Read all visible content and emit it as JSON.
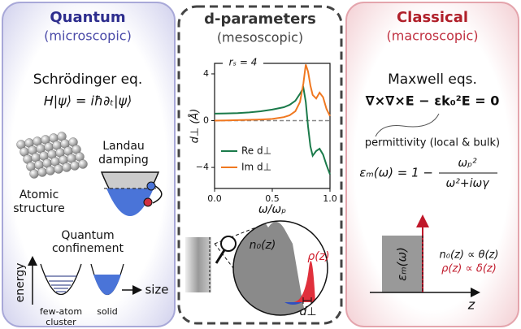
{
  "left": {
    "title": "Quantum",
    "subtitle": "(microscopic)",
    "equation_name": "Schrödinger eq.",
    "equation": "H|ψ⟩ = iħ∂ₜ|ψ⟩",
    "atomic_label": [
      "Atomic",
      "structure"
    ],
    "landau_label": [
      "Landau",
      "damping"
    ],
    "confinement_label": [
      "Quantum",
      "confinement"
    ],
    "energy_label": "energy",
    "size_label": "size",
    "cluster_label": [
      "few-atom",
      "cluster"
    ],
    "solid_label": "solid"
  },
  "center": {
    "title": "d-parameters",
    "subtitle": "(mesoscopic)",
    "n0_label": "n₀(z)",
    "rho_label": "ρ(z)",
    "d_label": "d⊥"
  },
  "right": {
    "title": "Classical",
    "subtitle": "(macroscopic)",
    "equation_name": "Maxwell eqs.",
    "equation": "∇×∇×E − εk₀²E = 0",
    "permittivity_label": "permittivity (local & bulk)",
    "formula_lhs": "εₘ(ω) = 1 −",
    "formula_num": "ωₚ²",
    "formula_den": "ω²+iωγ",
    "eps_label": "εₘ(ω)",
    "n0_label": "n₀(z) ∝ θ(z)",
    "rho_label": "ρ(z) ∝ δ(z)",
    "z_label": "z"
  },
  "chart_data": {
    "type": "line",
    "annotation": "rₛ = 4",
    "ylabel": "d⊥ (Å)",
    "xlabel": "ω/ωₚ",
    "x": [
      0,
      0.1,
      0.2,
      0.3,
      0.4,
      0.5,
      0.6,
      0.65,
      0.7,
      0.74,
      0.77,
      0.79,
      0.81,
      0.83,
      0.85,
      0.88,
      0.91,
      0.94,
      0.97,
      1.0
    ],
    "series": [
      {
        "name": "Re d⊥",
        "color": "#1a7a4a",
        "values": [
          0.6,
          0.62,
          0.65,
          0.7,
          0.8,
          0.95,
          1.15,
          1.35,
          1.7,
          2.3,
          2.8,
          1.6,
          -0.5,
          -2.2,
          -3.0,
          -2.6,
          -2.4,
          -2.9,
          -3.8,
          -4.6
        ]
      },
      {
        "name": "Im d⊥",
        "color": "#f07820",
        "values": [
          0.0,
          0.02,
          0.04,
          0.07,
          0.1,
          0.15,
          0.3,
          0.45,
          0.8,
          1.6,
          3.2,
          4.8,
          4.2,
          3.0,
          2.2,
          1.9,
          2.4,
          2.0,
          1.0,
          0.4
        ]
      }
    ],
    "xlim": [
      0,
      1
    ],
    "ylim": [
      -5.8,
      4.9
    ],
    "xticks": [
      {
        "value": 0,
        "label": "0.0"
      },
      0.5,
      {
        "value": 1,
        "label": "1.0"
      }
    ],
    "yticks": [
      4,
      0,
      {
        "value": -4,
        "label": "−4"
      }
    ]
  }
}
